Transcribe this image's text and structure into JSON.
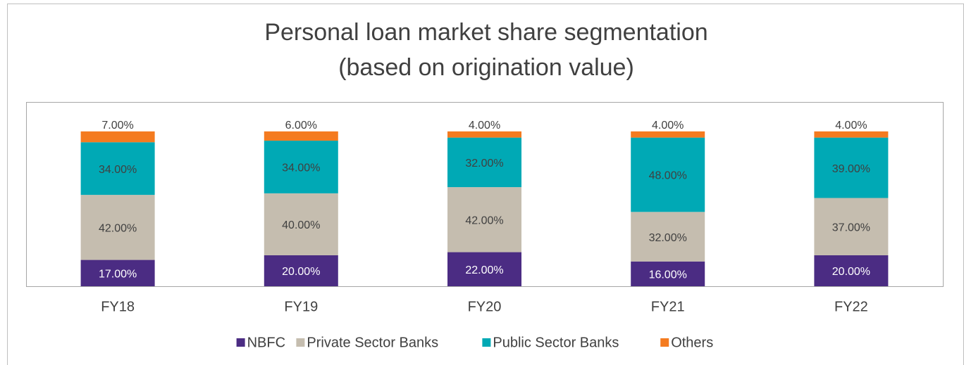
{
  "chart_data": {
    "type": "stacked_bar",
    "title": "Personal loan market share segmentation",
    "subtitle": "(based on origination value)",
    "categories": [
      "FY18",
      "FY19",
      "FY20",
      "FY21",
      "FY22"
    ],
    "ylim": [
      0,
      119
    ],
    "legend": "bottom",
    "series": [
      {
        "name": "NBFC",
        "color": "#4b2c83",
        "values": [
          17,
          20,
          22,
          16,
          20
        ],
        "value_labels": [
          "17.00%",
          "20.00%",
          "22.00%",
          "16.00%",
          "20.00%"
        ]
      },
      {
        "name": "Private Sector Banks",
        "color": "#c5bdaf",
        "values": [
          42,
          40,
          42,
          32,
          37
        ],
        "value_labels": [
          "42.00%",
          "40.00%",
          "42.00%",
          "32.00%",
          "37.00%"
        ]
      },
      {
        "name": "Public Sector Banks",
        "color": "#00a9b5",
        "values": [
          34,
          34,
          32,
          48,
          39
        ],
        "value_labels": [
          "34.00%",
          "34.00%",
          "32.00%",
          "48.00%",
          "39.00%"
        ]
      },
      {
        "name": "Others",
        "color": "#f47b20",
        "values": [
          7,
          6,
          4,
          4,
          4
        ],
        "value_labels": [
          "7.00%",
          "6.00%",
          "4.00%",
          "4.00%",
          "4.00%"
        ]
      }
    ]
  }
}
